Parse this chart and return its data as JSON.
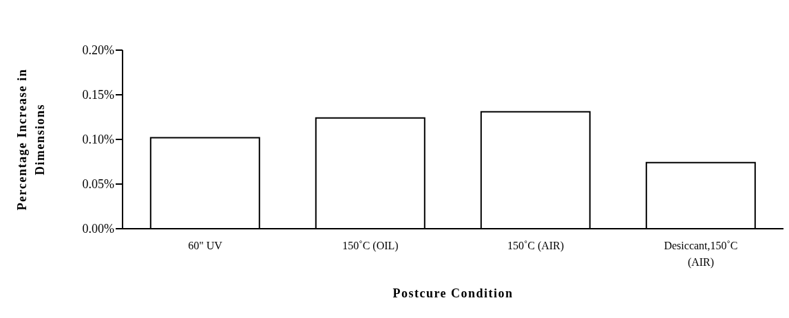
{
  "chart_data": {
    "type": "bar",
    "xlabel": "Postcure Condition",
    "ylabel": "Percentage Increase in Dimensions",
    "categories": [
      "60\" UV",
      "150˚C (OIL)",
      "150˚C (AIR)",
      "Desiccant,150˚C (AIR)"
    ],
    "values": [
      0.102,
      0.124,
      0.131,
      0.074
    ],
    "color": "#ffffff",
    "ylim": [
      0,
      0.2
    ],
    "yticks": [
      {
        "value": 0,
        "label": "0.00%"
      },
      {
        "value": 0.05,
        "label": "0.05%"
      },
      {
        "value": 0.1,
        "label": "0.10%"
      },
      {
        "value": 0.15,
        "label": "0.15%"
      },
      {
        "value": 0.2,
        "label": "0.20%"
      }
    ],
    "grid": false,
    "legend": false
  }
}
